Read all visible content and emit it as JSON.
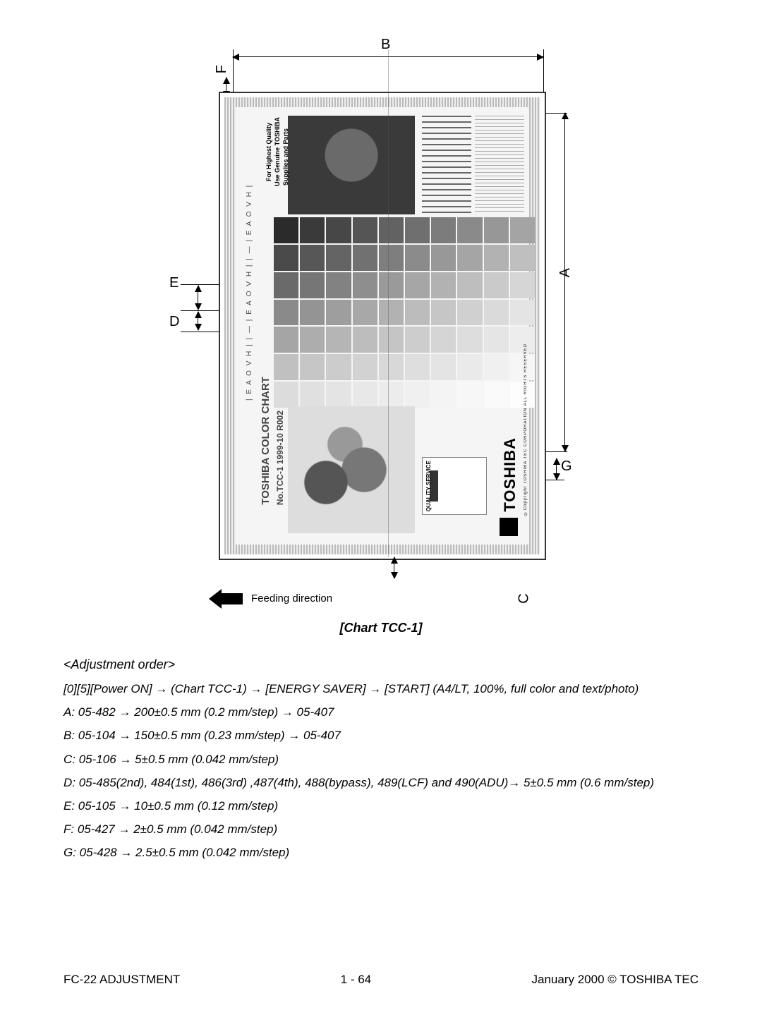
{
  "labels": {
    "A": "A",
    "B": "B",
    "C": "C",
    "D": "D",
    "E": "E",
    "F": "F",
    "G": "G"
  },
  "feeding_direction": "Feeding direction",
  "chart_caption": "[Chart TCC-1]",
  "chart_inner": {
    "sidebar_text": "| E A O V H | | — | E A O V H | | — | E A O V H |",
    "title": "TOSHIBA COLOR CHART",
    "subtitle": "No.TCC-1   1999-10 R002",
    "qualitytext1": "For Highest Quality",
    "qualitytext2": "Use Genuine TOSHIBA",
    "qualitytext3": "Supplies and Parts",
    "quality_service": "QUALITY SERVICE",
    "logo": "TOSHIBA",
    "copyright": "©Copyright TOSHIBA TEC CORPORATION  ALL RIGHTS RESERVED"
  },
  "adjustment": {
    "heading": "<Adjustment order>",
    "lines": [
      "[0][5][Power ON] → (Chart TCC-1) → [ENERGY SAVER] → [START]  (A4/LT, 100%, full color and text/photo)",
      "A: 05-482 → 200±0.5 mm (0.2 mm/step) → 05-407",
      "B: 05-104 → 150±0.5 mm (0.23 mm/step) → 05-407",
      "C: 05-106 → 5±0.5 mm (0.042 mm/step)",
      "D: 05-485(2nd), 484(1st), 486(3rd) ,487(4th), 488(bypass), 489(LCF) and 490(ADU)→ 5±0.5 mm (0.6 mm/step)",
      "E: 05-105 → 10±0.5 mm (0.12 mm/step)",
      "F: 05-427 → 2±0.5 mm (0.042 mm/step)",
      "G: 05-428 → 2.5±0.5 mm (0.042 mm/step)"
    ]
  },
  "footer": {
    "left": "FC-22 ADJUSTMENT",
    "center": "1 - 64",
    "right": "January 2000  ©  TOSHIBA TEC"
  },
  "swatch_colors": [
    [
      "#2b2b2b",
      "#3a3a3a",
      "#474747",
      "#555",
      "#626262",
      "#6f6f6f",
      "#7c7c7c",
      "#8a8a8a",
      "#979797",
      "#a4a4a4"
    ],
    [
      "#4a4a4a",
      "#575757",
      "#646464",
      "#717171",
      "#7e7e7e",
      "#8b8b8b",
      "#989898",
      "#a5a5a5",
      "#b2b2b2",
      "#bfbfbf"
    ],
    [
      "#6a6a6a",
      "#767676",
      "#828282",
      "#8e8e8e",
      "#9a9a9a",
      "#a6a6a6",
      "#b2b2b2",
      "#bebebe",
      "#cacaca",
      "#d6d6d6"
    ],
    [
      "#8a8a8a",
      "#949494",
      "#9e9e9e",
      "#a8a8a8",
      "#b2b2b2",
      "#bcbcbc",
      "#c6c6c6",
      "#d0d0d0",
      "#dadada",
      "#e4e4e4"
    ],
    [
      "#a5a5a5",
      "#adadad",
      "#b5b5b5",
      "#bdbdbd",
      "#c5c5c5",
      "#cdcdcd",
      "#d5d5d5",
      "#dddddd",
      "#e5e5e5",
      "#ededed"
    ],
    [
      "#c0c0c0",
      "#c6c6c6",
      "#cccccc",
      "#d2d2d2",
      "#d8d8d8",
      "#dedede",
      "#e4e4e4",
      "#eaeaea",
      "#f0f0f0",
      "#f6f6f6"
    ],
    [
      "#dcdcdc",
      "#e0e0e0",
      "#e4e4e4",
      "#e8e8e8",
      "#ececec",
      "#f0f0f0",
      "#f4f4f4",
      "#f7f7f7",
      "#fafafa",
      "#fdfdfd"
    ]
  ]
}
